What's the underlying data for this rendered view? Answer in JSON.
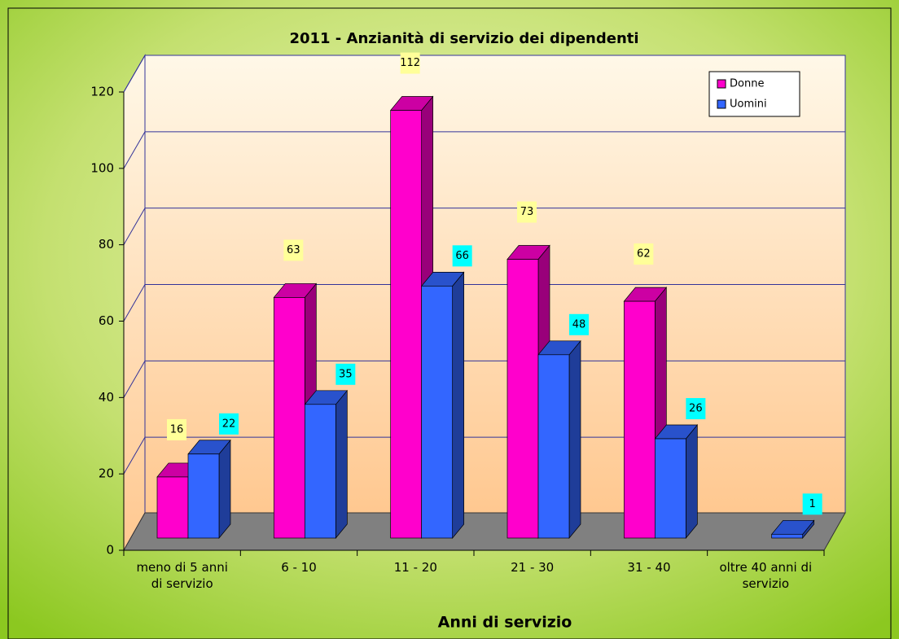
{
  "chart_data": {
    "type": "bar3d",
    "title": "2011 - Anzianità di servizio dei dipendenti",
    "x_label": "Anni di servizio",
    "categories": [
      "meno di 5 anni di servizio",
      "6 - 10",
      "11 - 20",
      "21 - 30",
      "31 - 40",
      "oltre 40 anni di servizio"
    ],
    "series": [
      {
        "name": "Donne",
        "color": "#ff00cc",
        "values": [
          16,
          63,
          112,
          73,
          62,
          null
        ]
      },
      {
        "name": "Uomini",
        "color": "#3366ff",
        "values": [
          22,
          35,
          66,
          48,
          26,
          1
        ]
      }
    ],
    "ylim": [
      0,
      120
    ],
    "yticks": [
      0,
      20,
      40,
      60,
      80,
      100,
      120
    ],
    "grid": true,
    "legend": "top-right"
  }
}
